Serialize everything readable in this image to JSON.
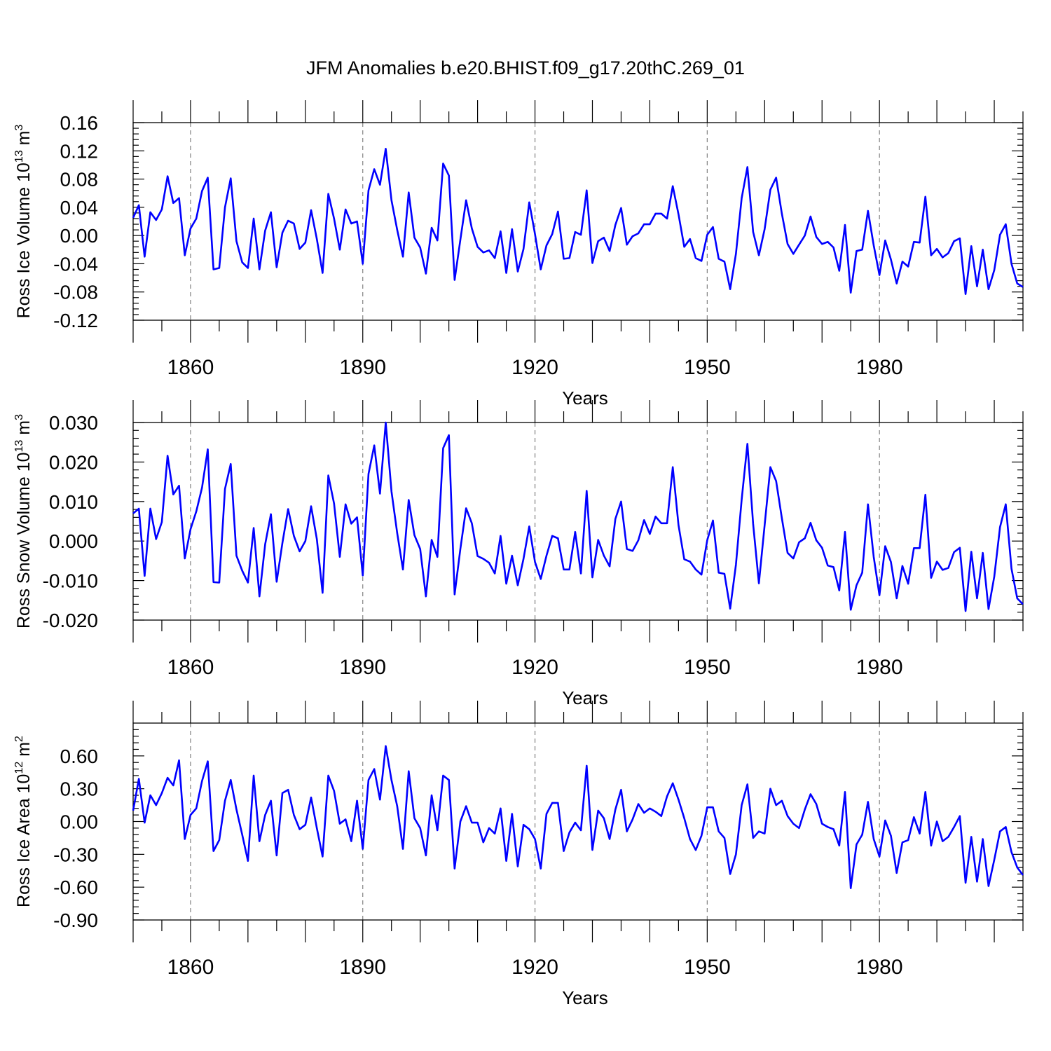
{
  "title": "JFM Anomalies b.e20.BHIST.f09_g17.20thC.269_01",
  "colors": {
    "line": "#0000ff",
    "axis": "#000000",
    "grid": "#808080"
  },
  "chart_data": [
    {
      "type": "line",
      "ylabel": "Ross Ice Volume 10",
      "ylabel_sup": "13",
      "ylabel_unit": " m",
      "ylabel_unit_sup": "3",
      "xlabel": "Years",
      "xlim": [
        1850,
        2005
      ],
      "ylim": [
        -0.12,
        0.16
      ],
      "xticks": [
        1860,
        1890,
        1920,
        1950,
        1980
      ],
      "xtick_labels": [
        "1860",
        "1890",
        "1920",
        "1950",
        "1980"
      ],
      "yticks": [
        -0.12,
        -0.08,
        -0.04,
        0.0,
        0.04,
        0.08,
        0.12,
        0.16
      ],
      "ytick_labels": [
        "-0.12",
        "-0.08",
        "-0.04",
        "0.00",
        "0.04",
        "0.08",
        "0.12",
        "0.16"
      ],
      "x_start": 1850,
      "series": [
        {
          "name": "Ross Ice Volume",
          "values": [
            0.025,
            0.043,
            -0.03,
            0.033,
            0.022,
            0.037,
            0.084,
            0.046,
            0.053,
            -0.028,
            0.01,
            0.024,
            0.063,
            0.082,
            -0.048,
            -0.046,
            0.04,
            0.081,
            -0.008,
            -0.038,
            -0.046,
            0.024,
            -0.048,
            0.007,
            0.033,
            -0.045,
            0.004,
            0.021,
            0.017,
            -0.019,
            -0.01,
            0.036,
            -0.005,
            -0.053,
            0.059,
            0.024,
            -0.02,
            0.037,
            0.017,
            0.02,
            -0.04,
            0.064,
            0.094,
            0.072,
            0.123,
            0.05,
            0.008,
            -0.03,
            0.061,
            -0.003,
            -0.017,
            -0.054,
            0.011,
            -0.007,
            0.102,
            0.085,
            -0.063,
            -0.006,
            0.05,
            0.01,
            -0.016,
            -0.024,
            -0.021,
            -0.032,
            0.006,
            -0.053,
            0.009,
            -0.051,
            -0.019,
            0.047,
            0.002,
            -0.048,
            -0.014,
            0.002,
            0.034,
            -0.033,
            -0.032,
            0.005,
            0.001,
            0.064,
            -0.039,
            -0.008,
            -0.003,
            -0.022,
            0.015,
            0.039,
            -0.013,
            -0.001,
            0.003,
            0.016,
            0.016,
            0.031,
            0.031,
            0.024,
            0.07,
            0.03,
            -0.016,
            -0.005,
            -0.032,
            -0.036,
            0.001,
            0.012,
            -0.033,
            -0.037,
            -0.076,
            -0.026,
            0.053,
            0.097,
            0.005,
            -0.028,
            0.009,
            0.065,
            0.082,
            0.031,
            -0.012,
            -0.026,
            -0.013,
            0.0,
            0.027,
            -0.002,
            -0.012,
            -0.009,
            -0.017,
            -0.05,
            0.015,
            -0.081,
            -0.022,
            -0.02,
            0.035,
            -0.014,
            -0.056,
            -0.007,
            -0.034,
            -0.068,
            -0.037,
            -0.044,
            -0.009,
            -0.01,
            0.055,
            -0.028,
            -0.019,
            -0.031,
            -0.025,
            -0.008,
            -0.004,
            -0.083,
            -0.015,
            -0.072,
            -0.02,
            -0.076,
            -0.049,
            0.001,
            0.016,
            -0.04,
            -0.068,
            -0.073
          ]
        }
      ]
    },
    {
      "type": "line",
      "ylabel": "Ross Snow Volume 10",
      "ylabel_sup": "13",
      "ylabel_unit": " m",
      "ylabel_unit_sup": "3",
      "xlabel": "Years",
      "xlim": [
        1850,
        2005
      ],
      "ylim": [
        -0.02,
        0.03
      ],
      "xticks": [
        1860,
        1890,
        1920,
        1950,
        1980
      ],
      "xtick_labels": [
        "1860",
        "1890",
        "1920",
        "1950",
        "1980"
      ],
      "yticks": [
        -0.02,
        -0.01,
        0.0,
        0.01,
        0.02,
        0.03
      ],
      "ytick_labels": [
        "-0.020",
        "-0.010",
        "0.000",
        "0.010",
        "0.020",
        "0.030"
      ],
      "x_start": 1850,
      "series": [
        {
          "name": "Ross Snow Volume",
          "values": [
            0.007,
            0.0082,
            -0.0088,
            0.0082,
            0.0005,
            0.0048,
            0.0216,
            0.0118,
            0.014,
            -0.0044,
            0.003,
            0.0075,
            0.0135,
            0.0232,
            -0.0104,
            -0.0105,
            0.0132,
            0.0195,
            -0.0037,
            -0.0075,
            -0.0105,
            0.0033,
            -0.014,
            -0.0008,
            0.0068,
            -0.0103,
            -0.0005,
            0.0081,
            0.0013,
            -0.0026,
            0.0,
            0.0088,
            0.0005,
            -0.0131,
            0.0166,
            0.0095,
            -0.004,
            0.0093,
            0.0044,
            0.006,
            -0.0087,
            0.017,
            0.0242,
            0.012,
            0.03,
            0.0126,
            0.002,
            -0.0072,
            0.0104,
            0.0015,
            -0.002,
            -0.014,
            0.0003,
            -0.004,
            0.0235,
            0.0268,
            -0.0135,
            -0.002,
            0.0083,
            0.0045,
            -0.0038,
            -0.0045,
            -0.0055,
            -0.0082,
            0.0013,
            -0.0108,
            -0.0037,
            -0.0112,
            -0.0045,
            0.0037,
            -0.0053,
            -0.0096,
            -0.0037,
            0.0013,
            0.0007,
            -0.0072,
            -0.0072,
            0.0023,
            -0.0082,
            0.0127,
            -0.0092,
            0.0003,
            -0.0037,
            -0.0064,
            0.0056,
            0.01,
            -0.002,
            -0.0025,
            0.0002,
            0.0053,
            0.0018,
            0.0062,
            0.0045,
            0.0045,
            0.0187,
            0.004,
            -0.0046,
            -0.0052,
            -0.0072,
            -0.0085,
            0.0002,
            0.0052,
            -0.008,
            -0.0083,
            -0.0171,
            -0.006,
            0.0105,
            0.0246,
            0.0043,
            -0.0107,
            0.004,
            0.0187,
            0.0152,
            0.0058,
            -0.003,
            -0.0044,
            -0.0003,
            0.0007,
            0.0046,
            0.0002,
            -0.0017,
            -0.0062,
            -0.0066,
            -0.0125,
            0.0023,
            -0.0174,
            -0.0112,
            -0.008,
            0.0093,
            -0.004,
            -0.0137,
            -0.0013,
            -0.0053,
            -0.0145,
            -0.0063,
            -0.0108,
            -0.0018,
            -0.0018,
            0.0117,
            -0.0093,
            -0.0052,
            -0.0073,
            -0.0068,
            -0.0028,
            -0.0017,
            -0.0177,
            -0.0027,
            -0.0145,
            -0.003,
            -0.0172,
            -0.009,
            0.0035,
            0.0093,
            -0.007,
            -0.0145,
            -0.016
          ]
        }
      ]
    },
    {
      "type": "line",
      "ylabel": "Ross Ice Area 10",
      "ylabel_sup": "12",
      "ylabel_unit": " m",
      "ylabel_unit_sup": "2",
      "xlabel": "Years",
      "xlim": [
        1850,
        2005
      ],
      "ylim": [
        -0.9,
        0.9
      ],
      "xticks": [
        1860,
        1890,
        1920,
        1950,
        1980
      ],
      "xtick_labels": [
        "1860",
        "1890",
        "1920",
        "1950",
        "1980"
      ],
      "yticks": [
        -0.9,
        -0.6,
        -0.3,
        0.0,
        0.3,
        0.6
      ],
      "ytick_labels": [
        "-0.90",
        "-0.60",
        "-0.30",
        "0.00",
        "0.30",
        "0.60"
      ],
      "x_start": 1850,
      "series": [
        {
          "name": "Ross Ice Area",
          "values": [
            0.1,
            0.39,
            -0.01,
            0.24,
            0.15,
            0.26,
            0.4,
            0.33,
            0.56,
            -0.16,
            0.06,
            0.12,
            0.37,
            0.55,
            -0.27,
            -0.17,
            0.19,
            0.38,
            0.11,
            -0.12,
            -0.36,
            0.42,
            -0.18,
            0.06,
            0.19,
            -0.31,
            0.26,
            0.29,
            0.06,
            -0.07,
            -0.03,
            0.22,
            -0.06,
            -0.32,
            0.42,
            0.28,
            -0.02,
            0.02,
            -0.18,
            0.19,
            -0.25,
            0.38,
            0.48,
            0.2,
            0.69,
            0.38,
            0.14,
            -0.25,
            0.46,
            0.03,
            -0.06,
            -0.31,
            0.24,
            -0.08,
            0.42,
            0.38,
            -0.43,
            0.0,
            0.14,
            -0.01,
            -0.01,
            -0.19,
            -0.06,
            -0.11,
            0.12,
            -0.36,
            0.07,
            -0.41,
            -0.03,
            -0.07,
            -0.16,
            -0.43,
            0.07,
            0.17,
            0.17,
            -0.27,
            -0.1,
            -0.01,
            -0.08,
            0.51,
            -0.26,
            0.1,
            0.03,
            -0.16,
            0.11,
            0.29,
            -0.09,
            0.02,
            0.16,
            0.08,
            0.12,
            0.09,
            0.05,
            0.23,
            0.35,
            0.2,
            0.03,
            -0.16,
            -0.26,
            -0.13,
            0.13,
            0.13,
            -0.09,
            -0.15,
            -0.48,
            -0.3,
            0.15,
            0.34,
            -0.15,
            -0.09,
            -0.11,
            0.3,
            0.15,
            0.19,
            0.05,
            -0.02,
            -0.06,
            0.11,
            0.25,
            0.16,
            -0.02,
            -0.05,
            -0.07,
            -0.22,
            0.27,
            -0.61,
            -0.21,
            -0.12,
            0.18,
            -0.16,
            -0.32,
            0.01,
            -0.13,
            -0.47,
            -0.19,
            -0.17,
            0.04,
            -0.11,
            0.27,
            -0.22,
            0.0,
            -0.18,
            -0.14,
            -0.05,
            0.05,
            -0.56,
            -0.14,
            -0.55,
            -0.16,
            -0.59,
            -0.35,
            -0.09,
            -0.05,
            -0.28,
            -0.42,
            -0.49
          ]
        }
      ]
    }
  ]
}
